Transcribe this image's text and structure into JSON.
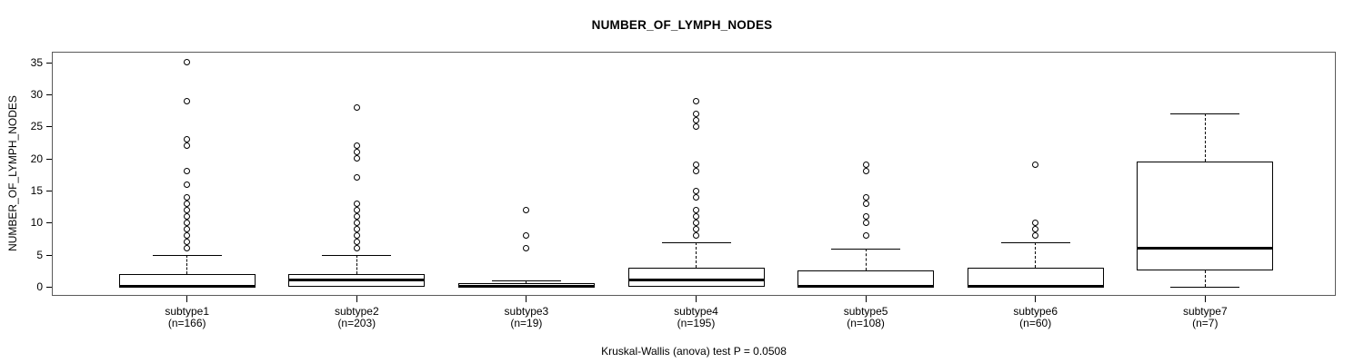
{
  "title": "NUMBER_OF_LYMPH_NODES",
  "footer": "Kruskal-Wallis (anova) test P = 0.0508",
  "chart_data": {
    "type": "boxplot",
    "title": "NUMBER_OF_LYMPH_NODES",
    "xlabel": "",
    "ylabel": "NUMBER_OF_LYMPH_NODES",
    "ylim": [
      -1.42,
      36.68
    ],
    "yticks": [
      0,
      5,
      10,
      15,
      20,
      25,
      30,
      35
    ],
    "grid": false,
    "legend": "none",
    "annotation": "Kruskal-Wallis (anova) test P = 0.0508",
    "groups": [
      {
        "label": "subtype1",
        "n_label": "(n=166)",
        "n": 166,
        "q1": 0,
        "median": 0,
        "q3": 2,
        "whisker_low": 0,
        "whisker_high": 5,
        "outliers": [
          6,
          7,
          8,
          9,
          10,
          11,
          12,
          13,
          14,
          16,
          18,
          22,
          23,
          29,
          35
        ]
      },
      {
        "label": "subtype2",
        "n_label": "(n=203)",
        "n": 203,
        "q1": 0,
        "median": 1,
        "q3": 2,
        "whisker_low": 0,
        "whisker_high": 5,
        "outliers": [
          6,
          7,
          8,
          9,
          10,
          11,
          12,
          13,
          17,
          20,
          21,
          22,
          28
        ]
      },
      {
        "label": "subtype3",
        "n_label": "(n=19)",
        "n": 19,
        "q1": 0,
        "median": 0,
        "q3": 0.5,
        "whisker_low": 0,
        "whisker_high": 1,
        "outliers": [
          6,
          8,
          12
        ]
      },
      {
        "label": "subtype4",
        "n_label": "(n=195)",
        "n": 195,
        "q1": 0,
        "median": 1,
        "q3": 3,
        "whisker_low": 0,
        "whisker_high": 7,
        "outliers": [
          8,
          9,
          10,
          11,
          12,
          14,
          15,
          18,
          19,
          25,
          26,
          27,
          29
        ]
      },
      {
        "label": "subtype5",
        "n_label": "(n=108)",
        "n": 108,
        "q1": 0,
        "median": 0,
        "q3": 2.5,
        "whisker_low": 0,
        "whisker_high": 6,
        "outliers": [
          8,
          10,
          11,
          13,
          14,
          18,
          19
        ]
      },
      {
        "label": "subtype6",
        "n_label": "(n=60)",
        "n": 60,
        "q1": 0,
        "median": 0,
        "q3": 3,
        "whisker_low": 0,
        "whisker_high": 7,
        "outliers": [
          8,
          9,
          10,
          19
        ]
      },
      {
        "label": "subtype7",
        "n_label": "(n=7)",
        "n": 7,
        "q1": 2.5,
        "median": 6,
        "q3": 19.5,
        "whisker_low": 0,
        "whisker_high": 27,
        "outliers": []
      }
    ],
    "colors": {
      "line": "#000000",
      "box_fill": "#ffffff",
      "background": "#ffffff",
      "plot_border": "#5a5a5a"
    }
  }
}
